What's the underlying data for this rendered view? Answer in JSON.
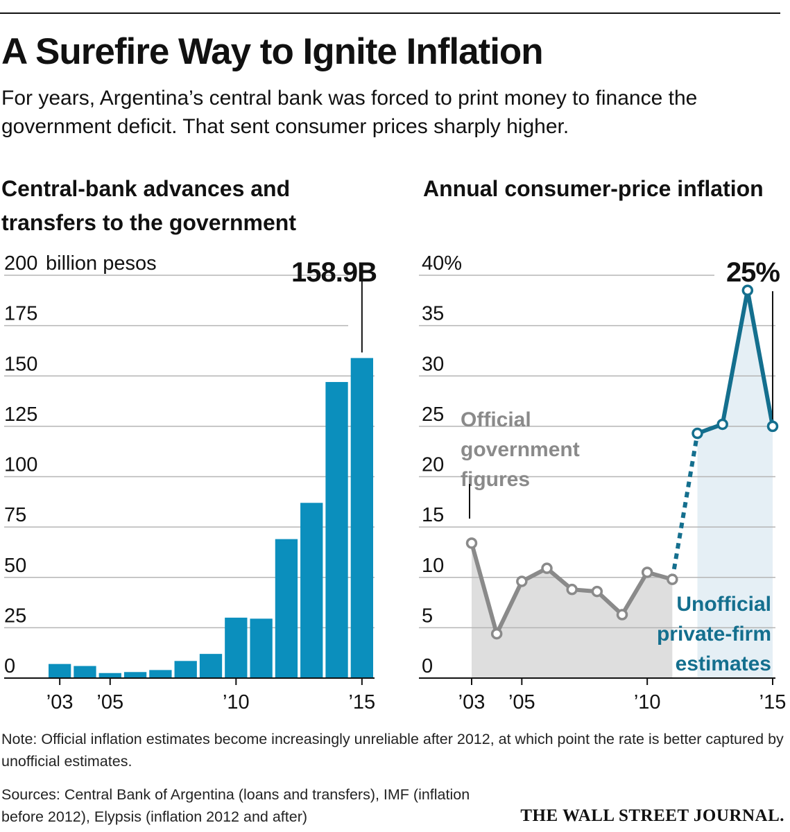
{
  "headline": "A Surefire Way to Ignite Inflation",
  "dek": "For years, Argentina’s central bank was forced to print money to finance the government deficit. That sent consumer prices sharply higher.",
  "note": "Note: Official inflation estimates become increasingly unreliable after 2012, at which point the rate is better captured by unofficial estimates.",
  "sources": "Sources: Central Bank of Argentina (loans and transfers), IMF (inflation before 2012), Elypsis (inflation 2012 and after)",
  "logo": "THE WALL STREET JOURNAL.",
  "colors": {
    "bar": "#0b8fbd",
    "official": "#8a8a8a",
    "official_fill": "#dedede",
    "unofficial": "#146f8e",
    "unofficial_fill": "#e5eff5",
    "grid": "#b5b5b5"
  },
  "chart_data": [
    {
      "type": "bar",
      "title": "Central-bank advances and transfers to the government",
      "unit_label": "billion pesos",
      "categories": [
        "2003",
        "2004",
        "2005",
        "2006",
        "2007",
        "2008",
        "2009",
        "2010",
        "2011",
        "2012",
        "2013",
        "2014",
        "2015"
      ],
      "values": [
        7,
        6,
        2.5,
        3,
        4,
        8.5,
        12,
        30,
        29.5,
        69,
        87,
        147,
        158.9
      ],
      "ylim": [
        0,
        200
      ],
      "yticks": [
        "0",
        "25",
        "50",
        "75",
        "100",
        "125",
        "150",
        "175",
        "200"
      ],
      "xtick_labels": [
        {
          "index": 0,
          "label": "’03"
        },
        {
          "index": 2,
          "label": "’05"
        },
        {
          "index": 7,
          "label": "’10"
        },
        {
          "index": 12,
          "label": "’15"
        }
      ],
      "annotation": {
        "index": 12,
        "label": "158.9B"
      }
    },
    {
      "type": "line",
      "title": "Annual consumer-price inflation",
      "x": [
        2003,
        2004,
        2005,
        2006,
        2007,
        2008,
        2009,
        2010,
        2011,
        2012,
        2013,
        2014,
        2015
      ],
      "series": [
        {
          "name": "Official government figures",
          "x": [
            2003,
            2004,
            2005,
            2006,
            2007,
            2008,
            2009,
            2010,
            2011
          ],
          "values": [
            13.4,
            4.4,
            9.6,
            10.9,
            8.8,
            8.6,
            6.3,
            10.5,
            9.8
          ]
        },
        {
          "name": "Unofficial private-firm estimates",
          "x": [
            2012,
            2013,
            2014,
            2015
          ],
          "values": [
            24.3,
            25.2,
            38.5,
            25
          ]
        }
      ],
      "ylim": [
        0,
        40
      ],
      "yticks": [
        "0",
        "5",
        "10",
        "15",
        "20",
        "25",
        "30",
        "35",
        "40%"
      ],
      "xtick_labels": [
        {
          "x": 2003,
          "label": "’03"
        },
        {
          "x": 2005,
          "label": "’05"
        },
        {
          "x": 2010,
          "label": "’10"
        },
        {
          "x": 2015,
          "label": "’15"
        }
      ],
      "annotation": {
        "x": 2015,
        "label": "25%"
      },
      "series_labels": {
        "official": [
          "Official",
          "government",
          "figures"
        ],
        "unofficial": [
          "Unofficial",
          "private-firm",
          "estimates"
        ]
      }
    }
  ]
}
